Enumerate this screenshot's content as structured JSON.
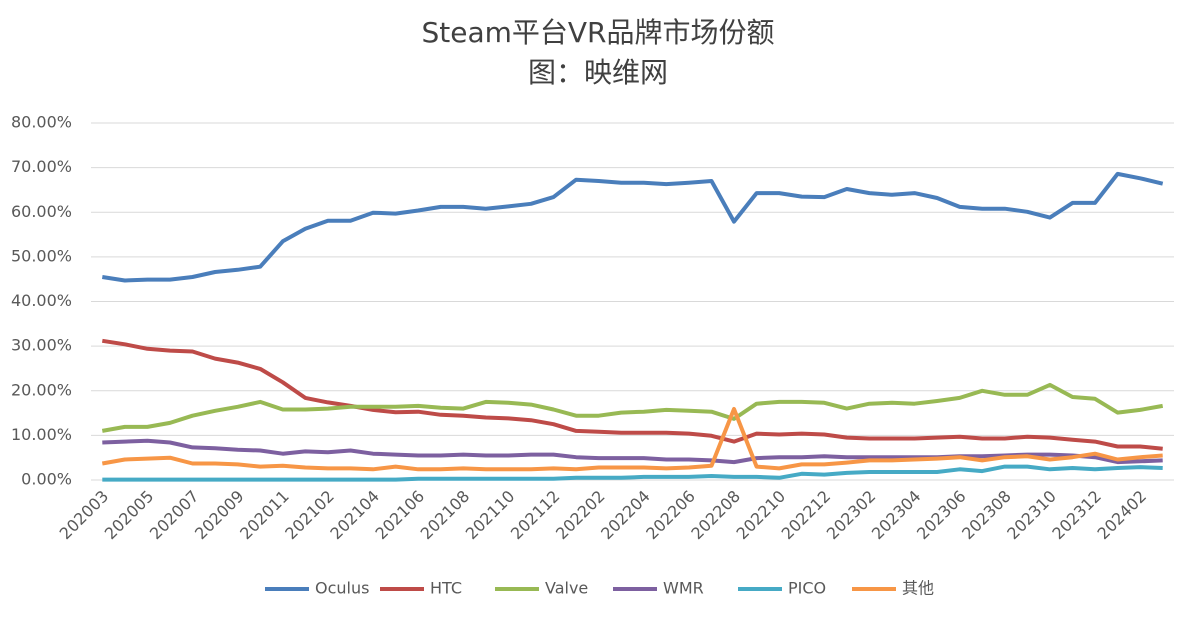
{
  "chart_data": {
    "type": "line",
    "title": "Steam平台VR品牌市场份额",
    "subtitle": "图：映维网",
    "categories": [
      "202003",
      null,
      "202005",
      null,
      "202007",
      null,
      "202009",
      null,
      "202011",
      null,
      "202102",
      null,
      "202104",
      null,
      "202106",
      null,
      "202108",
      null,
      "202110",
      null,
      "202112",
      null,
      "202202",
      null,
      "202204",
      null,
      "202206",
      null,
      "202208",
      null,
      "202210",
      null,
      "202212",
      null,
      "202302",
      null,
      "202304",
      null,
      "202306",
      null,
      "202308",
      null,
      "202310",
      null,
      "202312",
      null,
      "202402",
      null
    ],
    "series": [
      {
        "name": "Oculus",
        "color": "#4a7ebb",
        "values": [
          45.5,
          44.7,
          44.9,
          44.9,
          45.5,
          46.6,
          47.1,
          47.8,
          53.5,
          56.3,
          58.1,
          58.1,
          59.9,
          59.7,
          60.4,
          61.2,
          61.2,
          60.8,
          61.3,
          61.9,
          63.4,
          67.3,
          67.0,
          66.6,
          66.6,
          66.3,
          66.6,
          67.0,
          57.9,
          64.3,
          64.3,
          63.5,
          63.4,
          65.2,
          64.3,
          63.9,
          64.3,
          63.2,
          61.2,
          60.8,
          60.8,
          60.1,
          58.8,
          62.1,
          62.1,
          68.6,
          67.6,
          66.4
        ]
      },
      {
        "name": "HTC",
        "color": "#be4b48",
        "values": [
          31.2,
          30.4,
          29.4,
          29.0,
          28.8,
          27.2,
          26.3,
          24.9,
          21.9,
          18.4,
          17.4,
          16.6,
          15.7,
          15.2,
          15.3,
          14.6,
          14.4,
          14.0,
          13.8,
          13.4,
          12.5,
          11.0,
          10.8,
          10.6,
          10.6,
          10.6,
          10.4,
          9.9,
          8.6,
          10.4,
          10.2,
          10.4,
          10.2,
          9.5,
          9.3,
          9.3,
          9.3,
          9.5,
          9.7,
          9.3,
          9.3,
          9.7,
          9.5,
          9.0,
          8.6,
          7.5,
          7.5,
          7.0
        ]
      },
      {
        "name": "Valve",
        "color": "#98b954",
        "values": [
          11.0,
          11.9,
          11.9,
          12.8,
          14.4,
          15.5,
          16.4,
          17.5,
          15.8,
          15.8,
          16.0,
          16.4,
          16.4,
          16.4,
          16.6,
          16.2,
          16.0,
          17.5,
          17.3,
          16.9,
          15.8,
          14.4,
          14.4,
          15.1,
          15.3,
          15.7,
          15.5,
          15.3,
          13.7,
          17.1,
          17.5,
          17.5,
          17.3,
          16.0,
          17.1,
          17.3,
          17.1,
          17.7,
          18.4,
          20.0,
          19.1,
          19.1,
          21.3,
          18.6,
          18.2,
          15.1,
          15.7,
          16.6
        ]
      },
      {
        "name": "WMR",
        "color": "#7d60a0",
        "values": [
          8.4,
          8.6,
          8.8,
          8.4,
          7.3,
          7.1,
          6.8,
          6.6,
          5.9,
          6.4,
          6.2,
          6.6,
          5.9,
          5.7,
          5.5,
          5.5,
          5.7,
          5.5,
          5.5,
          5.7,
          5.7,
          5.1,
          4.9,
          4.9,
          4.9,
          4.6,
          4.6,
          4.4,
          4.0,
          4.9,
          5.1,
          5.1,
          5.3,
          5.1,
          5.1,
          5.1,
          5.1,
          5.1,
          5.3,
          5.3,
          5.5,
          5.7,
          5.7,
          5.5,
          5.1,
          4.0,
          4.2,
          4.4
        ]
      },
      {
        "name": "PICO",
        "color": "#46aac5",
        "values": [
          0.1,
          0.1,
          0.1,
          0.1,
          0.1,
          0.1,
          0.1,
          0.1,
          0.1,
          0.1,
          0.1,
          0.1,
          0.1,
          0.1,
          0.3,
          0.3,
          0.3,
          0.3,
          0.3,
          0.3,
          0.3,
          0.5,
          0.5,
          0.5,
          0.7,
          0.7,
          0.7,
          0.9,
          0.7,
          0.7,
          0.5,
          1.4,
          1.2,
          1.6,
          1.8,
          1.8,
          1.8,
          1.8,
          2.4,
          2.0,
          3.0,
          3.0,
          2.4,
          2.7,
          2.4,
          2.7,
          2.9,
          2.7
        ]
      },
      {
        "name": "其他",
        "color": "#f79646",
        "values": [
          3.7,
          4.6,
          4.8,
          5.0,
          3.7,
          3.7,
          3.5,
          3.0,
          3.2,
          2.8,
          2.6,
          2.6,
          2.4,
          3.0,
          2.4,
          2.4,
          2.6,
          2.4,
          2.4,
          2.4,
          2.6,
          2.4,
          2.8,
          2.8,
          2.8,
          2.6,
          2.8,
          3.2,
          15.9,
          3.0,
          2.6,
          3.5,
          3.5,
          3.9,
          4.4,
          4.4,
          4.6,
          4.8,
          5.1,
          4.4,
          5.1,
          5.3,
          4.6,
          5.1,
          5.9,
          4.6,
          5.1,
          5.5
        ]
      }
    ],
    "ylim": [
      0,
      80
    ],
    "yticks": [
      {
        "value": 0,
        "label": "0.00%"
      },
      {
        "value": 10,
        "label": "10.00%"
      },
      {
        "value": 20,
        "label": "20.00%"
      },
      {
        "value": 30,
        "label": "30.00%"
      },
      {
        "value": 40,
        "label": "40.00%"
      },
      {
        "value": 50,
        "label": "50.00%"
      },
      {
        "value": 60,
        "label": "60.00%"
      },
      {
        "value": 70,
        "label": "70.00%"
      },
      {
        "value": 80,
        "label": "80.00%"
      }
    ],
    "grid": true,
    "legend": "bottom"
  }
}
